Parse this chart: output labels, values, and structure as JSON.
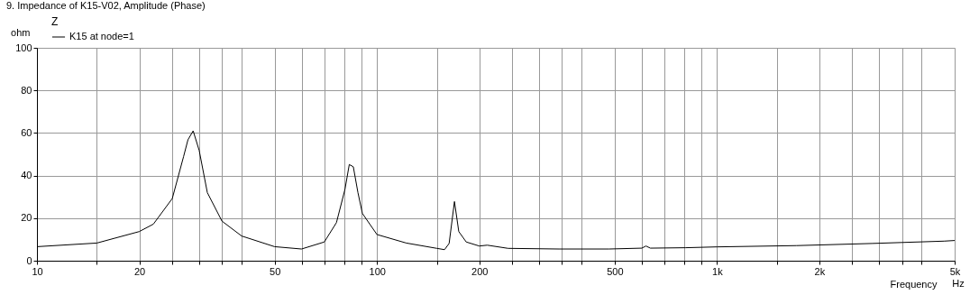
{
  "chart_data": {
    "type": "line",
    "title": "9. Impedance of K15-V02, Amplitude (Phase)",
    "xlabel": "Frequency",
    "ylabel": "ohm",
    "legend_title": "Z",
    "annotations": [
      "Hz"
    ],
    "log": "x",
    "grid": true,
    "legend": "top left",
    "marker": "none",
    "line_style": "solid",
    "xlim": [
      10,
      5000
    ],
    "ylim": [
      0,
      100
    ],
    "xticks": [
      10,
      {
        "value": 15,
        "label": null
      },
      20,
      {
        "value": 25,
        "label": null
      },
      {
        "value": 30,
        "label": null
      },
      {
        "value": 35,
        "label": null
      },
      {
        "value": 40,
        "label": null
      },
      50,
      {
        "value": 60,
        "label": null
      },
      {
        "value": 70,
        "label": null
      },
      {
        "value": 80,
        "label": null
      },
      {
        "value": 90,
        "label": null
      },
      100,
      {
        "value": 150,
        "label": null
      },
      200,
      {
        "value": 250,
        "label": null
      },
      {
        "value": 300,
        "label": null
      },
      {
        "value": 350,
        "label": null
      },
      {
        "value": 400,
        "label": null
      },
      500,
      {
        "value": 600,
        "label": null
      },
      {
        "value": 700,
        "label": null
      },
      {
        "value": 800,
        "label": null
      },
      {
        "value": 900,
        "label": null
      },
      {
        "value": 1000,
        "label": "1k"
      },
      {
        "value": 1500,
        "label": null
      },
      {
        "value": 2000,
        "label": "2k"
      },
      {
        "value": 2500,
        "label": null
      },
      {
        "value": 3000,
        "label": null
      },
      {
        "value": 3500,
        "label": null
      },
      {
        "value": 4000,
        "label": null
      },
      {
        "value": 5000,
        "label": "5k"
      }
    ],
    "yticks": [
      0,
      20,
      40,
      60,
      80,
      100
    ],
    "series": [
      {
        "name": "K15 at node=1",
        "color": "#000000",
        "x": [
          10,
          15,
          20,
          22,
          25,
          27,
          27.8,
          28.8,
          30,
          31.7,
          35,
          40,
          50,
          60,
          70,
          76,
          80.5,
          82.9,
          85.2,
          87.9,
          90.6,
          100,
          122,
          150,
          158,
          163,
          169,
          174,
          183,
          200,
          211,
          243,
          343,
          481,
          601,
          618,
          637,
          807,
          1000,
          1715,
          2853,
          4653,
          5000
        ],
        "values": [
          6.6,
          8.3,
          13.7,
          17.2,
          29.2,
          49,
          56.8,
          61,
          51.8,
          32,
          18.6,
          11.6,
          6.6,
          5.5,
          8.8,
          17.9,
          33.5,
          45.2,
          44.1,
          32,
          22.2,
          12.3,
          8.3,
          5.8,
          5.2,
          8.1,
          27.8,
          13.7,
          8.8,
          6.9,
          7.3,
          5.8,
          5.5,
          5.5,
          5.9,
          6.9,
          5.9,
          6.1,
          6.5,
          7.1,
          8.1,
          9.2,
          9.5
        ]
      }
    ]
  }
}
